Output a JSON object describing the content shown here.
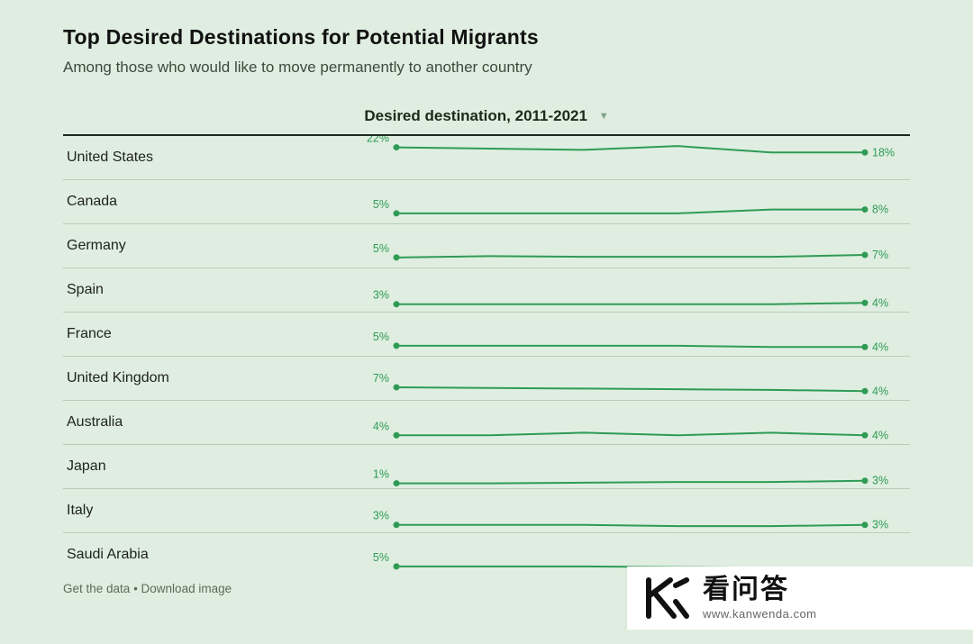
{
  "title": "Top Desired Destinations for Potential Migrants",
  "subtitle": "Among those who would like to move permanently to another country",
  "column_header": "Desired destination, 2011-2021",
  "footer": {
    "get": "Get the data",
    "sep": " • ",
    "dl": "Download image"
  },
  "chart": {
    "type": "sparkline-table",
    "line_color": "#2f9b55",
    "background_color": "#dfeee0",
    "row_border_color": "#b7cdb9",
    "header_rule_color": "#1d2b1e",
    "label_fontsize": 16,
    "value_fontsize": 12.5,
    "spark_width": 620,
    "spark_height": 48,
    "dot_radius": 3.5,
    "y_range": [
      0,
      28
    ],
    "x_points": 6
  },
  "rows": [
    {
      "country": "United States",
      "start_label": "22%",
      "end_label": "18%",
      "values": [
        22,
        21,
        20,
        23,
        18,
        18
      ]
    },
    {
      "country": "Canada",
      "start_label": "5%",
      "end_label": "8%",
      "values": [
        5,
        5,
        5,
        5,
        8,
        8
      ]
    },
    {
      "country": "Germany",
      "start_label": "5%",
      "end_label": "7%",
      "values": [
        5,
        6,
        5.5,
        5.5,
        5.5,
        7
      ]
    },
    {
      "country": "Spain",
      "start_label": "3%",
      "end_label": "4%",
      "values": [
        3,
        3,
        3,
        3,
        3,
        4
      ]
    },
    {
      "country": "France",
      "start_label": "5%",
      "end_label": "4%",
      "values": [
        5,
        5,
        5,
        5,
        4,
        4
      ]
    },
    {
      "country": "United Kingdom",
      "start_label": "7%",
      "end_label": "4%",
      "values": [
        7,
        6.5,
        6,
        5.5,
        5,
        4
      ]
    },
    {
      "country": "Australia",
      "start_label": "4%",
      "end_label": "4%",
      "values": [
        4,
        4,
        6,
        4,
        6,
        4
      ]
    },
    {
      "country": "Japan",
      "start_label": "1%",
      "end_label": "3%",
      "values": [
        1,
        1,
        1.5,
        2,
        2,
        3
      ]
    },
    {
      "country": "Italy",
      "start_label": "3%",
      "end_label": "3%",
      "values": [
        3,
        3,
        3,
        2,
        2,
        3
      ]
    },
    {
      "country": "Saudi Arabia",
      "start_label": "5%",
      "end_label": "",
      "values": [
        5,
        5,
        5,
        4.5,
        4,
        4
      ],
      "truncated": true
    }
  ],
  "watermark": {
    "cn": "看问答",
    "url": "www.kanwenda.com"
  }
}
